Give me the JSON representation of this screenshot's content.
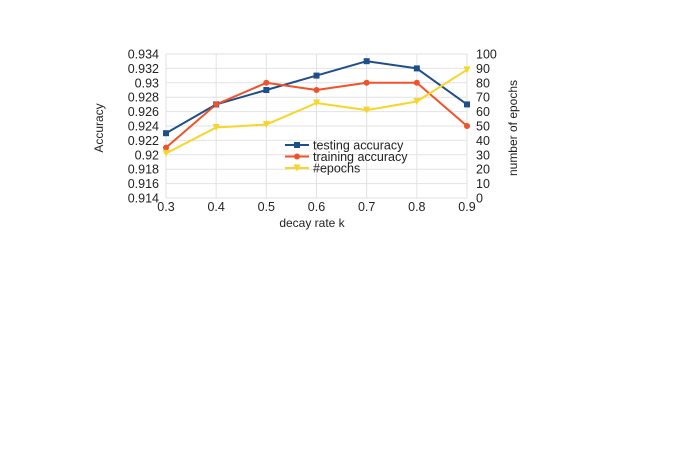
{
  "chart_data": {
    "type": "line",
    "title": "",
    "xlabel": "decay rate k",
    "ylabel": "Accuracy",
    "y2label": "number of epochs",
    "x": [
      0.3,
      0.4,
      0.5,
      0.6,
      0.7,
      0.8,
      0.9
    ],
    "x_ticks": [
      "0.3",
      "0.4",
      "0.5",
      "0.6",
      "0.7",
      "0.8",
      "0.9"
    ],
    "ylim": [
      0.914,
      0.934
    ],
    "y_ticks": [
      "0.914",
      "0.916",
      "0.918",
      "0.92",
      "0.922",
      "0.924",
      "0.926",
      "0.928",
      "0.93",
      "0.932",
      "0.934"
    ],
    "y2lim": [
      0,
      100
    ],
    "y2_ticks": [
      "0",
      "10",
      "20",
      "30",
      "40",
      "50",
      "60",
      "70",
      "80",
      "90",
      "100"
    ],
    "grid": true,
    "legend_position": "center-right",
    "series": [
      {
        "name": "testing accuracy",
        "axis": "left",
        "color": "#1f4e8c",
        "marker": "square",
        "values": [
          0.923,
          0.927,
          0.929,
          0.931,
          0.933,
          0.932,
          0.927
        ]
      },
      {
        "name": "training accuracy",
        "axis": "left",
        "color": "#f0522a",
        "marker": "circle",
        "values": [
          0.921,
          0.927,
          0.93,
          0.929,
          0.93,
          0.93,
          0.924
        ]
      },
      {
        "name": "#epochs",
        "axis": "right",
        "color": "#f7d52a",
        "marker": "triangle-down",
        "values": [
          31,
          49,
          51,
          66,
          61,
          67,
          89
        ]
      }
    ]
  }
}
